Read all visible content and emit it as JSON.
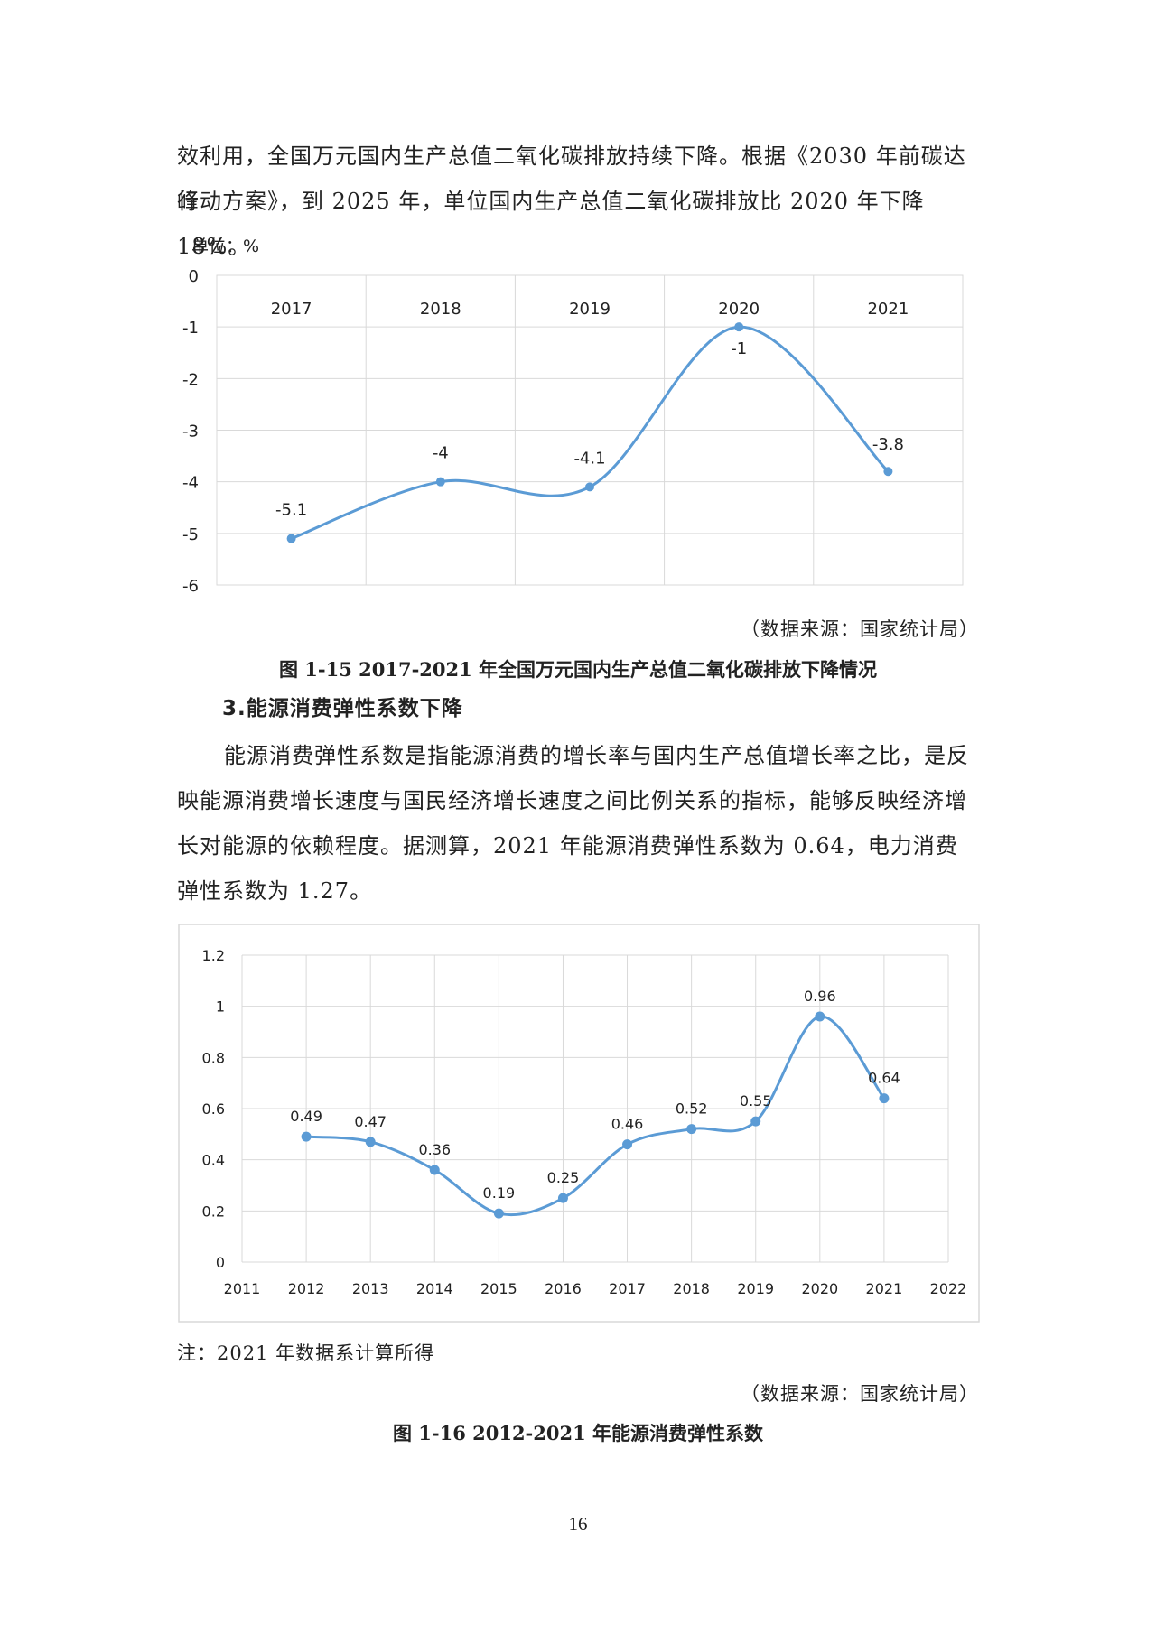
{
  "paragraphs": {
    "intro_line1": "效利用，全国万元国内生产总值二氧化碳排放持续下降。根据《2030 年前碳达峰",
    "intro_line2": "行动方案》，到 2025 年，单位国内生产总值二氧化碳排放比 2020 年下降 18%。",
    "elasticity": "能源消费弹性系数是指能源消费的增长率与国内生产总值增长率之比，是反映能源消费增长速度与国民经济增长速度之间比例关系的指标，能够反映经济增长对能源的依赖程度。据测算，2021 年能源消费弹性系数为 0.64，电力消费弹性系数为 1.27。"
  },
  "section_heading": "3.能源消费弹性系数下降",
  "figure1": {
    "unit_label": "单位：%",
    "source": "（数据来源：国家统计局）",
    "caption": "图 1-15 2017-2021 年全国万元国内生产总值二氧化碳排放下降情况"
  },
  "figure2": {
    "note": "注：2021 年数据系计算所得",
    "source": "（数据来源：国家统计局）",
    "caption": "图 1-16 2012-2021 年能源消费弹性系数"
  },
  "page_number": "16",
  "chart_data": [
    {
      "type": "line",
      "title": "",
      "xlabel": "",
      "ylabel": "单位：%",
      "categories": [
        "2017",
        "2018",
        "2019",
        "2020",
        "2021"
      ],
      "values": [
        -5.1,
        -4,
        -4.1,
        -1,
        -3.8
      ],
      "data_labels": [
        "-5.1",
        "-4",
        "-4.1",
        "-1",
        "-3.8"
      ],
      "ylim": [
        -6,
        0
      ],
      "yticks": [
        "0",
        "-1",
        "-2",
        "-3",
        "-4",
        "-5",
        "-6"
      ],
      "x_axis_position": "top",
      "grid": true,
      "smooth": true,
      "line_color": "#5b9bd5"
    },
    {
      "type": "line",
      "title": "",
      "xlabel": "",
      "ylabel": "",
      "x": [
        2012,
        2013,
        2014,
        2015,
        2016,
        2017,
        2018,
        2019,
        2020,
        2021
      ],
      "values": [
        0.49,
        0.47,
        0.36,
        0.19,
        0.25,
        0.46,
        0.52,
        0.55,
        0.96,
        0.64
      ],
      "data_labels": [
        "0.49",
        "0.47",
        "0.36",
        "0.19",
        "0.25",
        "0.46",
        "0.52",
        "0.55",
        "0.96",
        "0.64"
      ],
      "xlim": [
        2011,
        2022
      ],
      "xticks": [
        "2011",
        "2012",
        "2013",
        "2014",
        "2015",
        "2016",
        "2017",
        "2018",
        "2019",
        "2020",
        "2021",
        "2022"
      ],
      "ylim": [
        0,
        1.2
      ],
      "yticks": [
        "1.2",
        "1",
        "0.8",
        "0.6",
        "0.4",
        "0.2",
        "0"
      ],
      "grid": true,
      "smooth": true,
      "line_color": "#5b9bd5"
    }
  ]
}
